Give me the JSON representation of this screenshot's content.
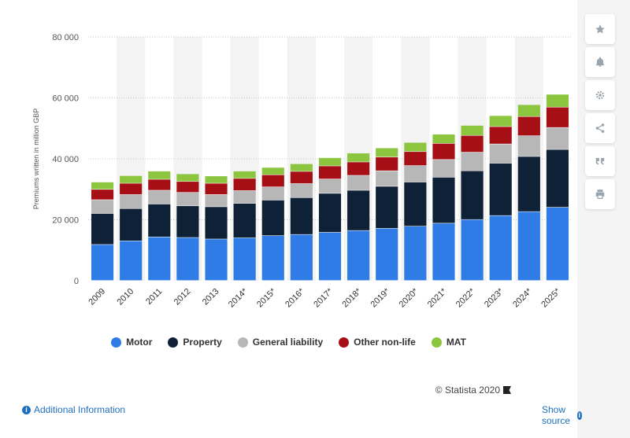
{
  "chart_data": {
    "type": "bar",
    "stacked": true,
    "categories": [
      "2009",
      "2010",
      "2011",
      "2012",
      "2013",
      "2014*",
      "2015*",
      "2016*",
      "2017*",
      "2018*",
      "2019*",
      "2020*",
      "2021*",
      "2022*",
      "2023*",
      "2024*",
      "2025*"
    ],
    "series": [
      {
        "name": "Motor",
        "color": "#2f7ce6",
        "values": [
          11800,
          13000,
          14300,
          14100,
          13600,
          14000,
          14700,
          15100,
          15800,
          16400,
          17100,
          17800,
          18800,
          20000,
          21300,
          22600,
          24000
        ]
      },
      {
        "name": "Property",
        "color": "#0f2137",
        "values": [
          10200,
          10600,
          10800,
          10400,
          10600,
          11300,
          11700,
          12100,
          12800,
          13200,
          13800,
          14500,
          15100,
          16000,
          17200,
          18100,
          19000
        ]
      },
      {
        "name": "General liability",
        "color": "#b7b7b7",
        "values": [
          4500,
          4600,
          4500,
          4400,
          4000,
          4200,
          4300,
          4600,
          4700,
          4900,
          5100,
          5400,
          5800,
          6100,
          6300,
          6800,
          7200
        ]
      },
      {
        "name": "Other non-life",
        "color": "#a50f15",
        "values": [
          3400,
          3700,
          3600,
          3600,
          3700,
          4000,
          4000,
          4000,
          4300,
          4400,
          4500,
          4600,
          5300,
          5500,
          5700,
          6300,
          6700
        ]
      },
      {
        "name": "MAT",
        "color": "#8cc63f",
        "values": [
          2400,
          2500,
          2700,
          2500,
          2400,
          2400,
          2400,
          2500,
          2700,
          2900,
          3000,
          3000,
          3000,
          3300,
          3600,
          3900,
          4200
        ]
      }
    ],
    "ylabel": "Premiums written in million GBP",
    "ylim": [
      0,
      80000
    ],
    "yticks": [
      0,
      20000,
      40000,
      60000,
      80000
    ],
    "ytick_labels": [
      "0",
      "20 000",
      "40 000",
      "60 000",
      "80 000"
    ],
    "grid": true,
    "legend_position": "bottom"
  },
  "footer": {
    "copyright": "© Statista 2020",
    "additional_info": "Additional Information",
    "show_source": "Show source"
  },
  "sidebar": {
    "icons": [
      "star-icon",
      "bell-icon",
      "gear-icon",
      "share-icon",
      "quote-icon",
      "print-icon"
    ]
  }
}
